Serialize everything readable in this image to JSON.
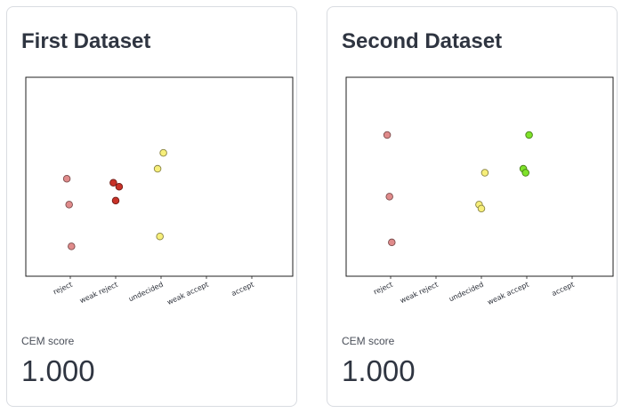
{
  "cards": [
    {
      "title": "First Dataset",
      "metric_label": "CEM score",
      "metric_value": "1.000"
    },
    {
      "title": "Second Dataset",
      "metric_label": "CEM score",
      "metric_value": "1.000"
    }
  ],
  "chart_data": [
    {
      "type": "scatter",
      "title": "First Dataset",
      "categories": [
        "reject",
        "weak reject",
        "undecided",
        "weak accept",
        "accept"
      ],
      "xlabel": "",
      "ylabel": "",
      "ylim": [
        0,
        10
      ],
      "grid": false,
      "colors": {
        "reject": "#e08b8b",
        "weak reject": "#c83228",
        "undecided": "#f7ef7a",
        "weak accept": "#7fe32a",
        "accept": "#2ea32e"
      },
      "points": [
        {
          "category": "reject",
          "y": 4.9
        },
        {
          "category": "reject",
          "y": 3.6
        },
        {
          "category": "reject",
          "y": 1.5
        },
        {
          "category": "weak reject",
          "y": 4.5
        },
        {
          "category": "weak reject",
          "y": 4.7
        },
        {
          "category": "weak reject",
          "y": 3.8
        },
        {
          "category": "undecided",
          "y": 6.2
        },
        {
          "category": "undecided",
          "y": 5.4
        },
        {
          "category": "undecided",
          "y": 2.0
        }
      ]
    },
    {
      "type": "scatter",
      "title": "Second Dataset",
      "categories": [
        "reject",
        "weak reject",
        "undecided",
        "weak accept",
        "accept"
      ],
      "xlabel": "",
      "ylabel": "",
      "ylim": [
        0,
        10
      ],
      "grid": false,
      "colors": {
        "reject": "#e08b8b",
        "weak reject": "#c83228",
        "undecided": "#f7ef7a",
        "weak accept": "#7fe32a",
        "accept": "#2ea32e"
      },
      "points": [
        {
          "category": "reject",
          "y": 7.1
        },
        {
          "category": "reject",
          "y": 4.0
        },
        {
          "category": "reject",
          "y": 1.7
        },
        {
          "category": "undecided",
          "y": 5.2
        },
        {
          "category": "undecided",
          "y": 3.6
        },
        {
          "category": "undecided",
          "y": 3.4
        },
        {
          "category": "weak accept",
          "y": 7.1
        },
        {
          "category": "weak accept",
          "y": 5.4
        },
        {
          "category": "weak accept",
          "y": 5.2
        }
      ]
    }
  ]
}
